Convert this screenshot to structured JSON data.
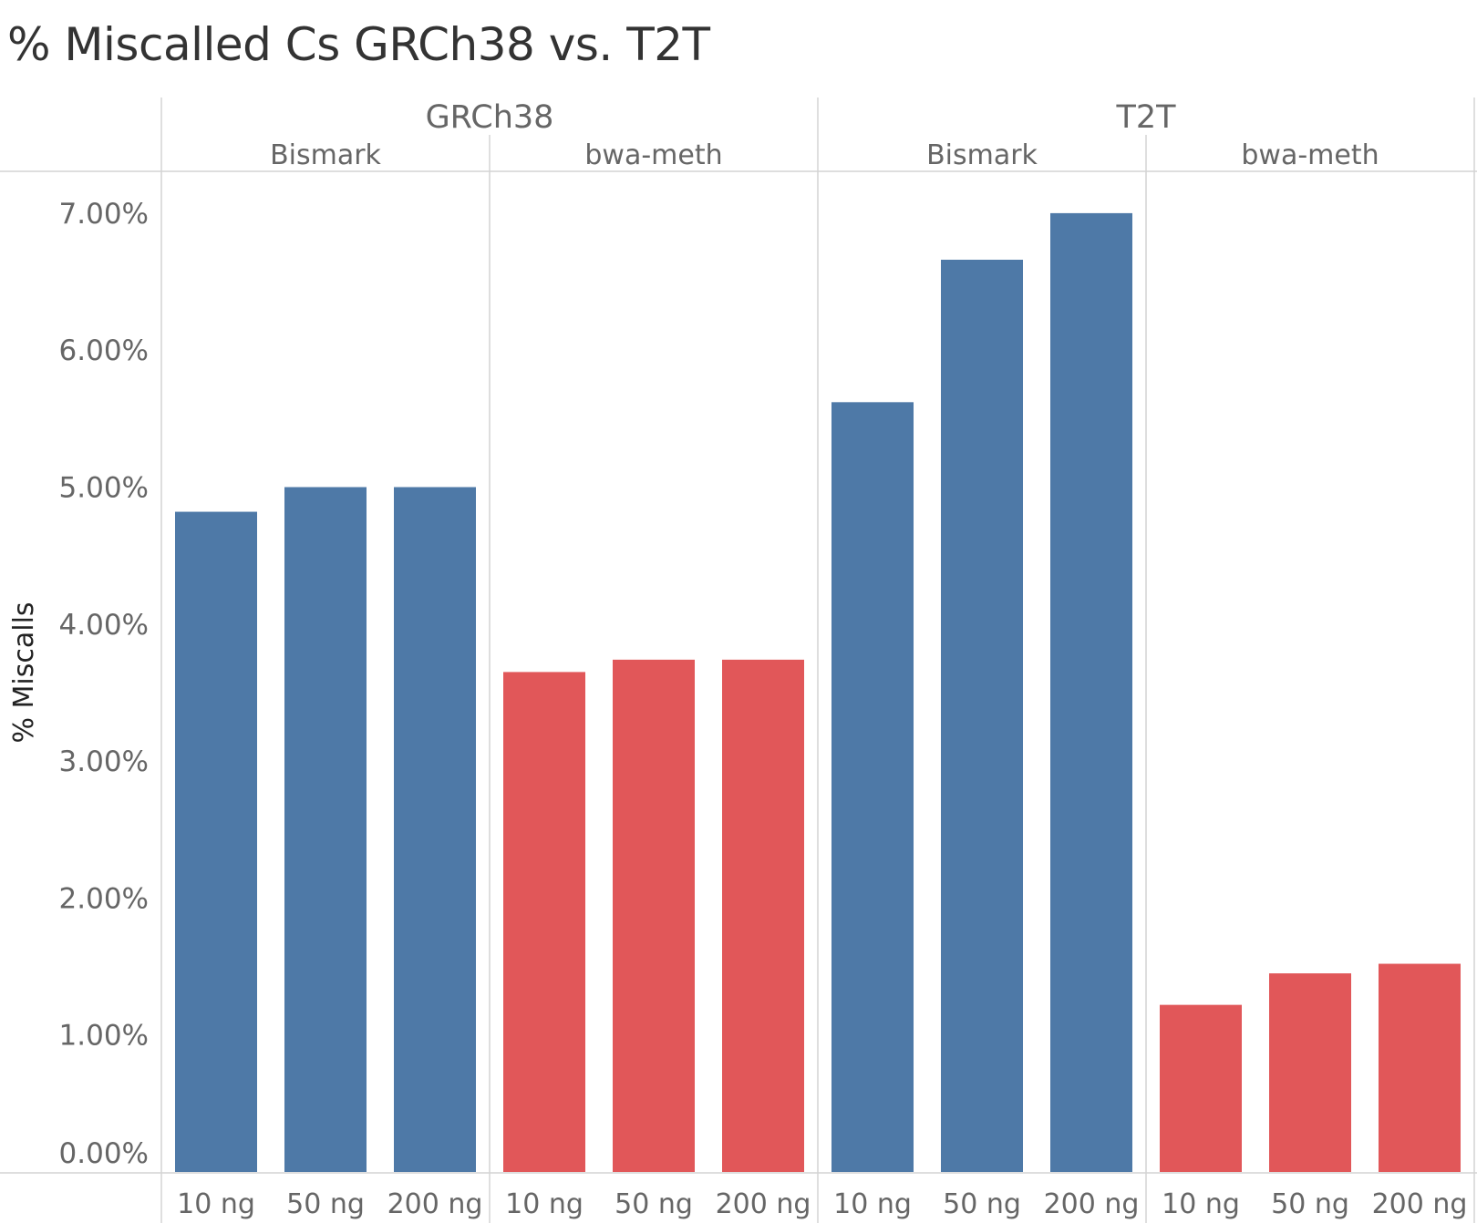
{
  "chart_data": {
    "type": "bar",
    "title": "% Miscalled Cs GRCh38 vs. T2T",
    "xlabel": "",
    "ylabel": "% Miscalls",
    "ylim": [
      0,
      7.2
    ],
    "yticks": [
      "0.00%",
      "1.00%",
      "2.00%",
      "3.00%",
      "4.00%",
      "5.00%",
      "6.00%",
      "7.00%"
    ],
    "categories": [
      "10 ng",
      "50 ng",
      "200 ng"
    ],
    "groups": [
      {
        "reference": "GRCh38",
        "panels": [
          {
            "aligner": "Bismark",
            "color": "#4e79a7",
            "values": [
              4.82,
              5.0,
              5.0
            ]
          },
          {
            "aligner": "bwa-meth",
            "color": "#e15759",
            "values": [
              3.65,
              3.74,
              3.74
            ]
          }
        ]
      },
      {
        "reference": "T2T",
        "panels": [
          {
            "aligner": "Bismark",
            "color": "#4e79a7",
            "values": [
              5.62,
              6.66,
              7.0
            ]
          },
          {
            "aligner": "bwa-meth",
            "color": "#e15759",
            "values": [
              1.22,
              1.45,
              1.52
            ]
          }
        ]
      }
    ],
    "grid": false,
    "legend": "none"
  }
}
